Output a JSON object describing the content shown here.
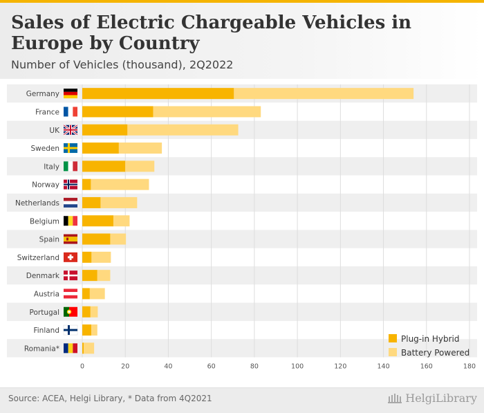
{
  "header": {
    "title": "Sales of Electric Chargeable Vehicles in Europe by Country",
    "subtitle": "Number of Vehicles (thousand), 2Q2022"
  },
  "footer": {
    "source": "Source: ACEA, Helgi Library, * Data from 4Q2021",
    "brand": "HelgiLibrary"
  },
  "colors": {
    "accent": "#f5b400",
    "plug_in_hybrid": "#f8b400",
    "battery_powered": "#ffd97f"
  },
  "chart_data": {
    "type": "bar",
    "orientation": "horizontal",
    "stacked": true,
    "title": "Sales of Electric Chargeable Vehicles in Europe by Country",
    "subtitle": "Number of Vehicles (thousand), 2Q2022",
    "xlim": [
      0,
      180
    ],
    "xticks": [
      0,
      20,
      40,
      60,
      80,
      100,
      120,
      140,
      160,
      180
    ],
    "grid": true,
    "legend_position": "bottom-right",
    "categories": [
      "Germany",
      "France",
      "UK",
      "Sweden",
      "Italy",
      "Norway",
      "Netherlands",
      "Belgium",
      "Spain",
      "Switzerland",
      "Denmark",
      "Austria",
      "Portugal",
      "Finland",
      "Romania*"
    ],
    "flags": [
      "germany-flag",
      "france-flag",
      "uk-flag",
      "sweden-flag",
      "italy-flag",
      "norway-flag",
      "netherlands-flag",
      "belgium-flag",
      "spain-flag",
      "switzerland-flag",
      "denmark-flag",
      "austria-flag",
      "portugal-flag",
      "finland-flag",
      "romania-flag"
    ],
    "series": [
      {
        "name": "Plug-in Hybrid",
        "values": [
          70.5,
          33.0,
          21.0,
          17.0,
          20.0,
          4.0,
          8.5,
          14.5,
          13.0,
          4.3,
          7.0,
          3.5,
          3.8,
          4.2,
          0.7
        ]
      },
      {
        "name": "Battery Powered",
        "values": [
          83.5,
          50.0,
          51.5,
          20.0,
          13.5,
          27.0,
          17.0,
          7.5,
          7.3,
          9.0,
          6.0,
          7.0,
          3.4,
          2.8,
          4.8
        ]
      }
    ]
  }
}
